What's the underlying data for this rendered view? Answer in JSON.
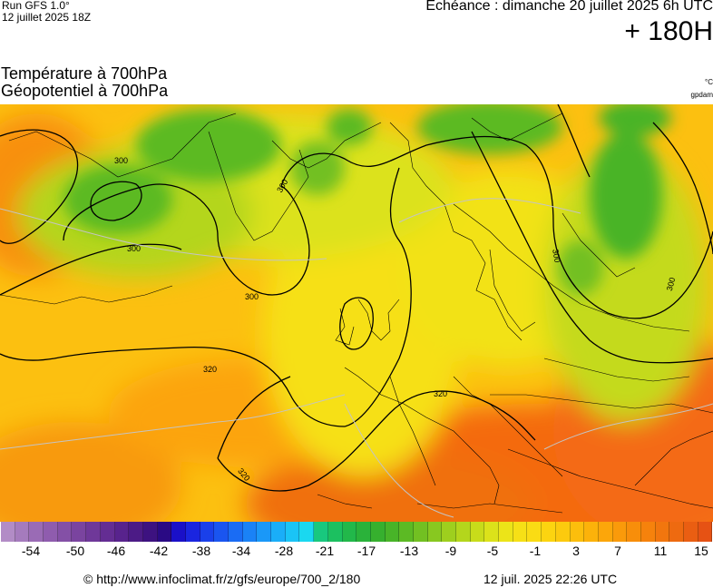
{
  "header": {
    "run": "Run GFS 1.0°",
    "run_date": "12 juillet 2025 18Z",
    "echeance": "Echéance : dimanche 20 juillet 2025 6h UTC",
    "lead_time": "+ 180H"
  },
  "titles": {
    "line1": "Température à 700hPa",
    "line2": "Géopotentiel à 700hPa",
    "unit_temp": "°C",
    "unit_geo": "gpdam"
  },
  "map": {
    "contour_labels": [
      "300",
      "300",
      "300",
      "300",
      "300",
      "300",
      "320",
      "320",
      "320"
    ]
  },
  "scale": {
    "ticks": [
      "-54",
      "-50",
      "-46",
      "-42",
      "-38",
      "-34",
      "-28",
      "-21",
      "-17",
      "-13",
      "-9",
      "-5",
      "-1",
      "3",
      "7",
      "11",
      "15"
    ],
    "colors": [
      "#b28cc6",
      "#a57bbd",
      "#9a6bb5",
      "#8f5cae",
      "#8450a6",
      "#7a449f",
      "#6f3899",
      "#642d93",
      "#58238d",
      "#4c1b86",
      "#3d1280",
      "#2a0a84",
      "#1a10c8",
      "#1a25e0",
      "#1a40ea",
      "#1a55f0",
      "#1a6cf4",
      "#1a82f6",
      "#1a98f8",
      "#1aaef8",
      "#1ac4f6",
      "#1ad8f0",
      "#18c87e",
      "#1cc060",
      "#22b84a",
      "#2ab23a",
      "#36b02e",
      "#48b428",
      "#5cba24",
      "#72c022",
      "#88c820",
      "#9ecf1e",
      "#b4d61c",
      "#c8dc1a",
      "#dce21a",
      "#ece418",
      "#f6e016",
      "#fadc14",
      "#fcd410",
      "#fcca0e",
      "#fcbe0c",
      "#fcb20a",
      "#fca60a",
      "#fa9a0a",
      "#f88e0a",
      "#f6820c",
      "#f2760e",
      "#ee6a10",
      "#ea5e12",
      "#e65214"
    ]
  },
  "footer": {
    "url": "© http://www.infoclimat.fr/z/gfs/europe/700_2/180",
    "date": "12 juil. 2025 22:26 UTC"
  }
}
